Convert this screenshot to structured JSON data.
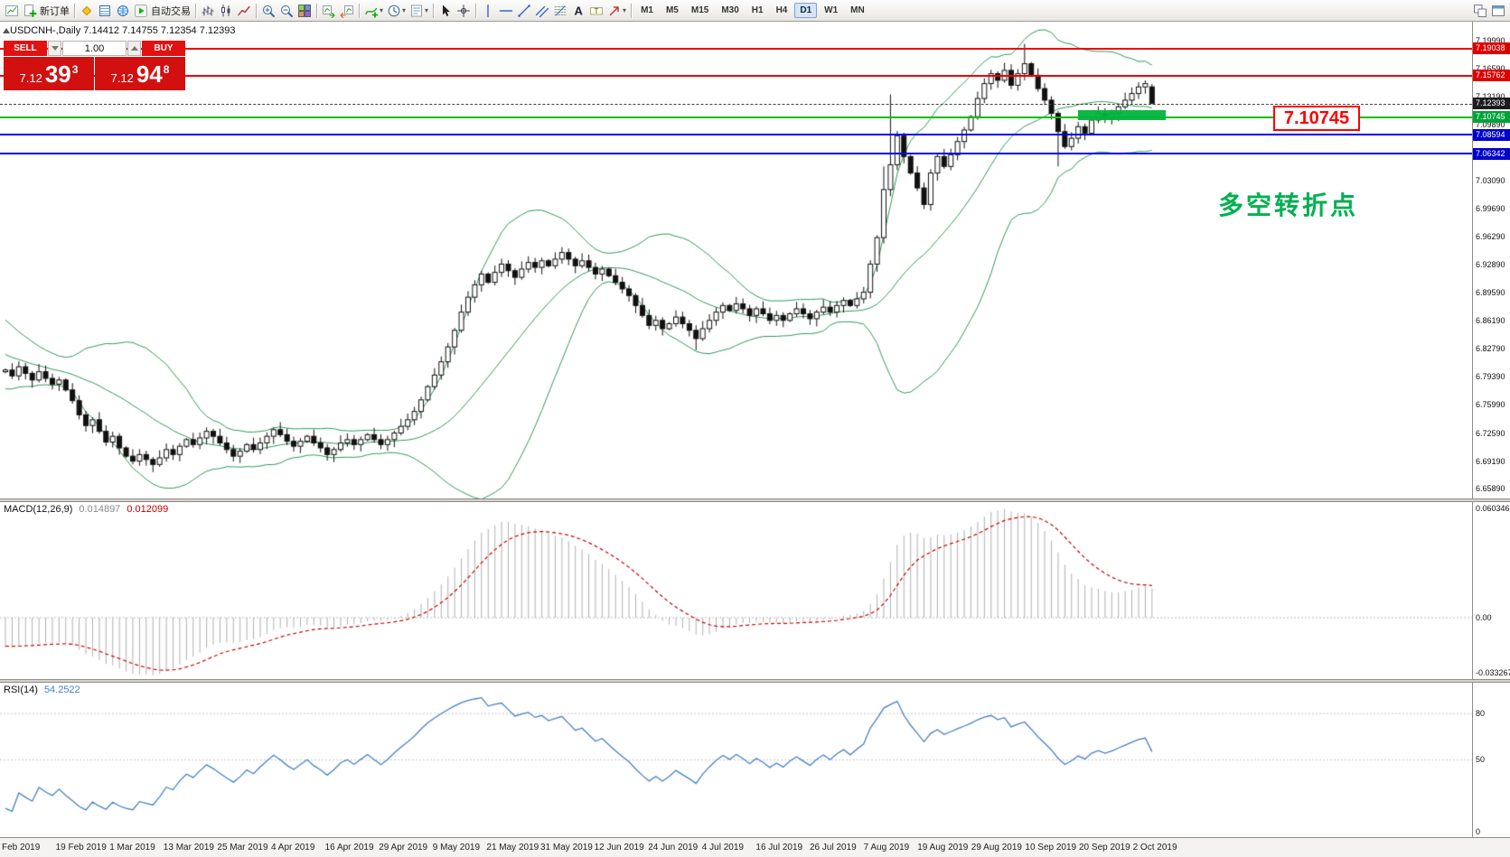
{
  "toolbar": {
    "new_order": "新订单",
    "autotrading": "自动交易",
    "timeframes": [
      "M1",
      "M5",
      "M15",
      "M30",
      "H1",
      "H4",
      "D1",
      "W1",
      "MN"
    ],
    "active_timeframe": "D1",
    "items": [
      {
        "kind": "icon",
        "name": "chart-window-icon"
      },
      {
        "kind": "button",
        "name": "new-order-button",
        "label": "新订单",
        "icon": "new-order-icon"
      },
      {
        "kind": "sep"
      },
      {
        "kind": "icon",
        "name": "market-watch-icon"
      },
      {
        "kind": "icon",
        "name": "data-window-icon"
      },
      {
        "kind": "icon",
        "name": "navigator-icon"
      },
      {
        "kind": "button",
        "name": "autotrading-button",
        "label": "自动交易",
        "icon": "autotrading-play-icon"
      },
      {
        "kind": "sep"
      },
      {
        "kind": "icon",
        "name": "bar-chart-icon"
      },
      {
        "kind": "icon",
        "name": "candlestick-chart-icon"
      },
      {
        "kind": "icon",
        "name": "line-chart-icon"
      },
      {
        "kind": "sep"
      },
      {
        "kind": "icon",
        "name": "zoom-in-icon"
      },
      {
        "kind": "icon",
        "name": "zoom-out-icon"
      },
      {
        "kind": "icon",
        "name": "tile-windows-icon"
      },
      {
        "kind": "sep"
      },
      {
        "kind": "icon",
        "name": "auto-scroll-icon"
      },
      {
        "kind": "icon",
        "name": "chart-shift-icon"
      },
      {
        "kind": "sep"
      },
      {
        "kind": "icon",
        "name": "indicators-icon",
        "dropdown": true
      },
      {
        "kind": "icon",
        "name": "periods-icon",
        "dropdown": true
      },
      {
        "kind": "icon",
        "name": "templates-icon",
        "dropdown": true
      },
      {
        "kind": "sep"
      },
      {
        "kind": "icon",
        "name": "cursor-icon"
      },
      {
        "kind": "icon",
        "name": "crosshair-icon"
      },
      {
        "kind": "sep"
      },
      {
        "kind": "icon",
        "name": "vertical-line-icon"
      },
      {
        "kind": "icon",
        "name": "horizontal-line-icon"
      },
      {
        "kind": "icon",
        "name": "trendline-icon"
      },
      {
        "kind": "icon",
        "name": "equidistant-channel-icon"
      },
      {
        "kind": "icon",
        "name": "fibonacci-icon"
      },
      {
        "kind": "icon",
        "name": "text-icon"
      },
      {
        "kind": "icon",
        "name": "text-label-icon"
      },
      {
        "kind": "icon",
        "name": "arrows-icon",
        "dropdown": true
      },
      {
        "kind": "sep"
      },
      {
        "kind": "timeframes"
      },
      {
        "kind": "spacer"
      },
      {
        "kind": "icon",
        "name": "arrange-windows-icon"
      },
      {
        "kind": "icon",
        "name": "fullscreen-icon"
      }
    ]
  },
  "legend": {
    "symbol_line": "USDCNH-,Daily 7.14412 7.14755 7.12354 7.12393"
  },
  "trade_panel": {
    "sell_label": "SELL",
    "buy_label": "BUY",
    "volume": "1.00",
    "sell_price": {
      "big": "7.12",
      "pips": "39",
      "sup": "3"
    },
    "buy_price": {
      "big": "7.12",
      "pips": "94",
      "sup": "8"
    }
  },
  "annotations": {
    "turning_point_text": "多空转折点",
    "turning_point_color": "#00b050",
    "price_callout": "7.10745",
    "price_callout_color": "#ff0000",
    "highlight_zone": {
      "start_index": 160,
      "end_index": 173,
      "price_top": 7.1155,
      "price_bottom": 7.1035,
      "color": "#00b43c"
    }
  },
  "price_axis": {
    "labels": [
      "7.19990",
      "7.16590",
      "7.13190",
      "7.09890",
      "7.06490",
      "7.03090",
      "6.99690",
      "6.96290",
      "6.92890",
      "6.89590",
      "6.86190",
      "6.82790",
      "6.79390",
      "6.75990",
      "6.72590",
      "6.69190",
      "6.65890"
    ],
    "badges": [
      {
        "value": "7.19038",
        "bg": "#dd0000"
      },
      {
        "value": "7.15762",
        "bg": "#dd0000"
      },
      {
        "value": "7.12393",
        "bg": "#1c1c1c"
      },
      {
        "value": "7.10745",
        "bg": "#00a338"
      },
      {
        "value": "7.08594",
        "bg": "#0000cc"
      },
      {
        "value": "7.06342",
        "bg": "#0000cc"
      }
    ]
  },
  "h_lines": [
    {
      "price": 7.19038,
      "color": "#ee0000",
      "thickness": 2
    },
    {
      "price": 7.15762,
      "color": "#ee0000",
      "thickness": 2
    },
    {
      "price": 7.10745,
      "color": "#00c000",
      "thickness": 2
    },
    {
      "price": 7.08594,
      "color": "#0000ee",
      "thickness": 2
    },
    {
      "price": 7.06342,
      "color": "#0000ee",
      "thickness": 2
    }
  ],
  "current_price": {
    "value": 7.12393
  },
  "chart_data": {
    "type": "candlestick",
    "symbol": "USDCNH-",
    "period": "Daily",
    "title": "USDCNH-,Daily",
    "ohlc_current": {
      "open": 7.14412,
      "high": 7.14755,
      "low": 7.12354,
      "close": 7.12393
    },
    "ylim": [
      6.6589,
      7.1999
    ],
    "x_labels": [
      "Feb 2019",
      "19 Feb 2019",
      "1 Mar 2019",
      "13 Mar 2019",
      "25 Mar 2019",
      "4 Apr 2019",
      "16 Apr 2019",
      "29 Apr 2019",
      "9 May 2019",
      "21 May 2019",
      "31 May 2019",
      "12 Jun 2019",
      "24 Jun 2019",
      "4 Jul 2019",
      "16 Jul 2019",
      "26 Jul 2019",
      "7 Aug 2019",
      "19 Aug 2019",
      "29 Aug 2019",
      "10 Sep 2019",
      "20 Sep 2019",
      "2 Oct 2019"
    ],
    "warmup_closes": [
      6.87,
      6.864,
      6.858,
      6.85,
      6.846,
      6.84,
      6.834,
      6.83,
      6.824,
      6.82,
      6.816,
      6.812,
      6.806,
      6.802,
      6.806,
      6.81,
      6.804,
      6.798,
      6.794,
      6.8
    ],
    "closes": [
      6.802,
      6.795,
      6.806,
      6.798,
      6.79,
      6.8,
      6.792,
      6.785,
      6.79,
      6.778,
      6.765,
      6.748,
      6.735,
      6.742,
      6.728,
      6.715,
      6.722,
      6.708,
      6.698,
      6.692,
      6.7,
      6.694,
      6.688,
      6.696,
      6.706,
      6.7,
      6.71,
      6.718,
      6.712,
      6.72,
      6.728,
      6.722,
      6.714,
      6.706,
      6.698,
      6.704,
      6.712,
      6.706,
      6.714,
      6.722,
      6.73,
      6.724,
      6.716,
      6.71,
      6.716,
      6.722,
      6.714,
      6.708,
      6.7,
      6.706,
      6.714,
      6.718,
      6.712,
      6.718,
      6.724,
      6.718,
      6.712,
      6.718,
      6.726,
      6.734,
      6.742,
      6.752,
      6.766,
      6.782,
      6.796,
      6.812,
      6.83,
      6.85,
      6.872,
      6.89,
      6.905,
      6.918,
      6.908,
      6.92,
      6.93,
      6.922,
      6.914,
      6.924,
      6.932,
      6.926,
      6.934,
      6.928,
      6.936,
      6.944,
      6.936,
      6.928,
      6.934,
      6.926,
      6.918,
      6.924,
      6.916,
      6.908,
      6.9,
      6.892,
      6.88,
      6.868,
      6.856,
      6.862,
      6.852,
      6.858,
      6.866,
      6.858,
      6.85,
      6.84,
      6.852,
      6.862,
      6.872,
      6.88,
      6.874,
      6.882,
      6.876,
      6.868,
      6.876,
      6.87,
      6.862,
      6.868,
      6.862,
      6.87,
      6.876,
      6.87,
      6.864,
      6.872,
      6.878,
      6.872,
      6.88,
      6.886,
      6.88,
      6.888,
      6.896,
      6.93,
      6.962,
      7.02,
      7.05,
      7.085,
      7.06,
      7.04,
      7.022,
      7.002,
      7.04,
      7.06,
      7.048,
      7.062,
      7.078,
      7.092,
      7.108,
      7.13,
      7.148,
      7.16,
      7.152,
      7.164,
      7.146,
      7.16,
      7.172,
      7.158,
      7.142,
      7.128,
      7.112,
      7.09,
      7.072,
      7.082,
      7.096,
      7.088,
      7.104,
      7.112,
      7.106,
      7.112,
      7.12,
      7.128,
      7.136,
      7.144,
      7.148,
      7.1239
    ],
    "candle_overrides": {
      "103": [
        6.85,
        6.856,
        6.826,
        6.84
      ],
      "131": [
        6.962,
        7.048,
        6.955,
        7.02
      ],
      "132": [
        7.02,
        7.135,
        7.012,
        7.05
      ],
      "152": [
        7.16,
        7.196,
        7.152,
        7.172
      ],
      "157": [
        7.112,
        7.115,
        7.048,
        7.09
      ],
      "171": [
        7.14412,
        7.14755,
        7.12354,
        7.12393
      ]
    },
    "indicators": {
      "bollinger": {
        "label": "Bollinger Bands",
        "period": 20,
        "deviation": 2,
        "color": "#2e9b57"
      },
      "macd": {
        "label": "MACD(12,26,9)",
        "main_value": "0.014897",
        "signal_value": "0.012099",
        "axis_labels": [
          "0.060346",
          "0.00",
          "-0.033267"
        ],
        "histogram_color": "#b0b0b0",
        "signal_color": "#cc0000"
      },
      "rsi": {
        "label": "RSI(14)",
        "value": "54.2522",
        "line_color": "#4581c9",
        "levels": [
          80,
          50
        ],
        "axis_labels": [
          "80",
          "50",
          "0"
        ]
      }
    }
  }
}
